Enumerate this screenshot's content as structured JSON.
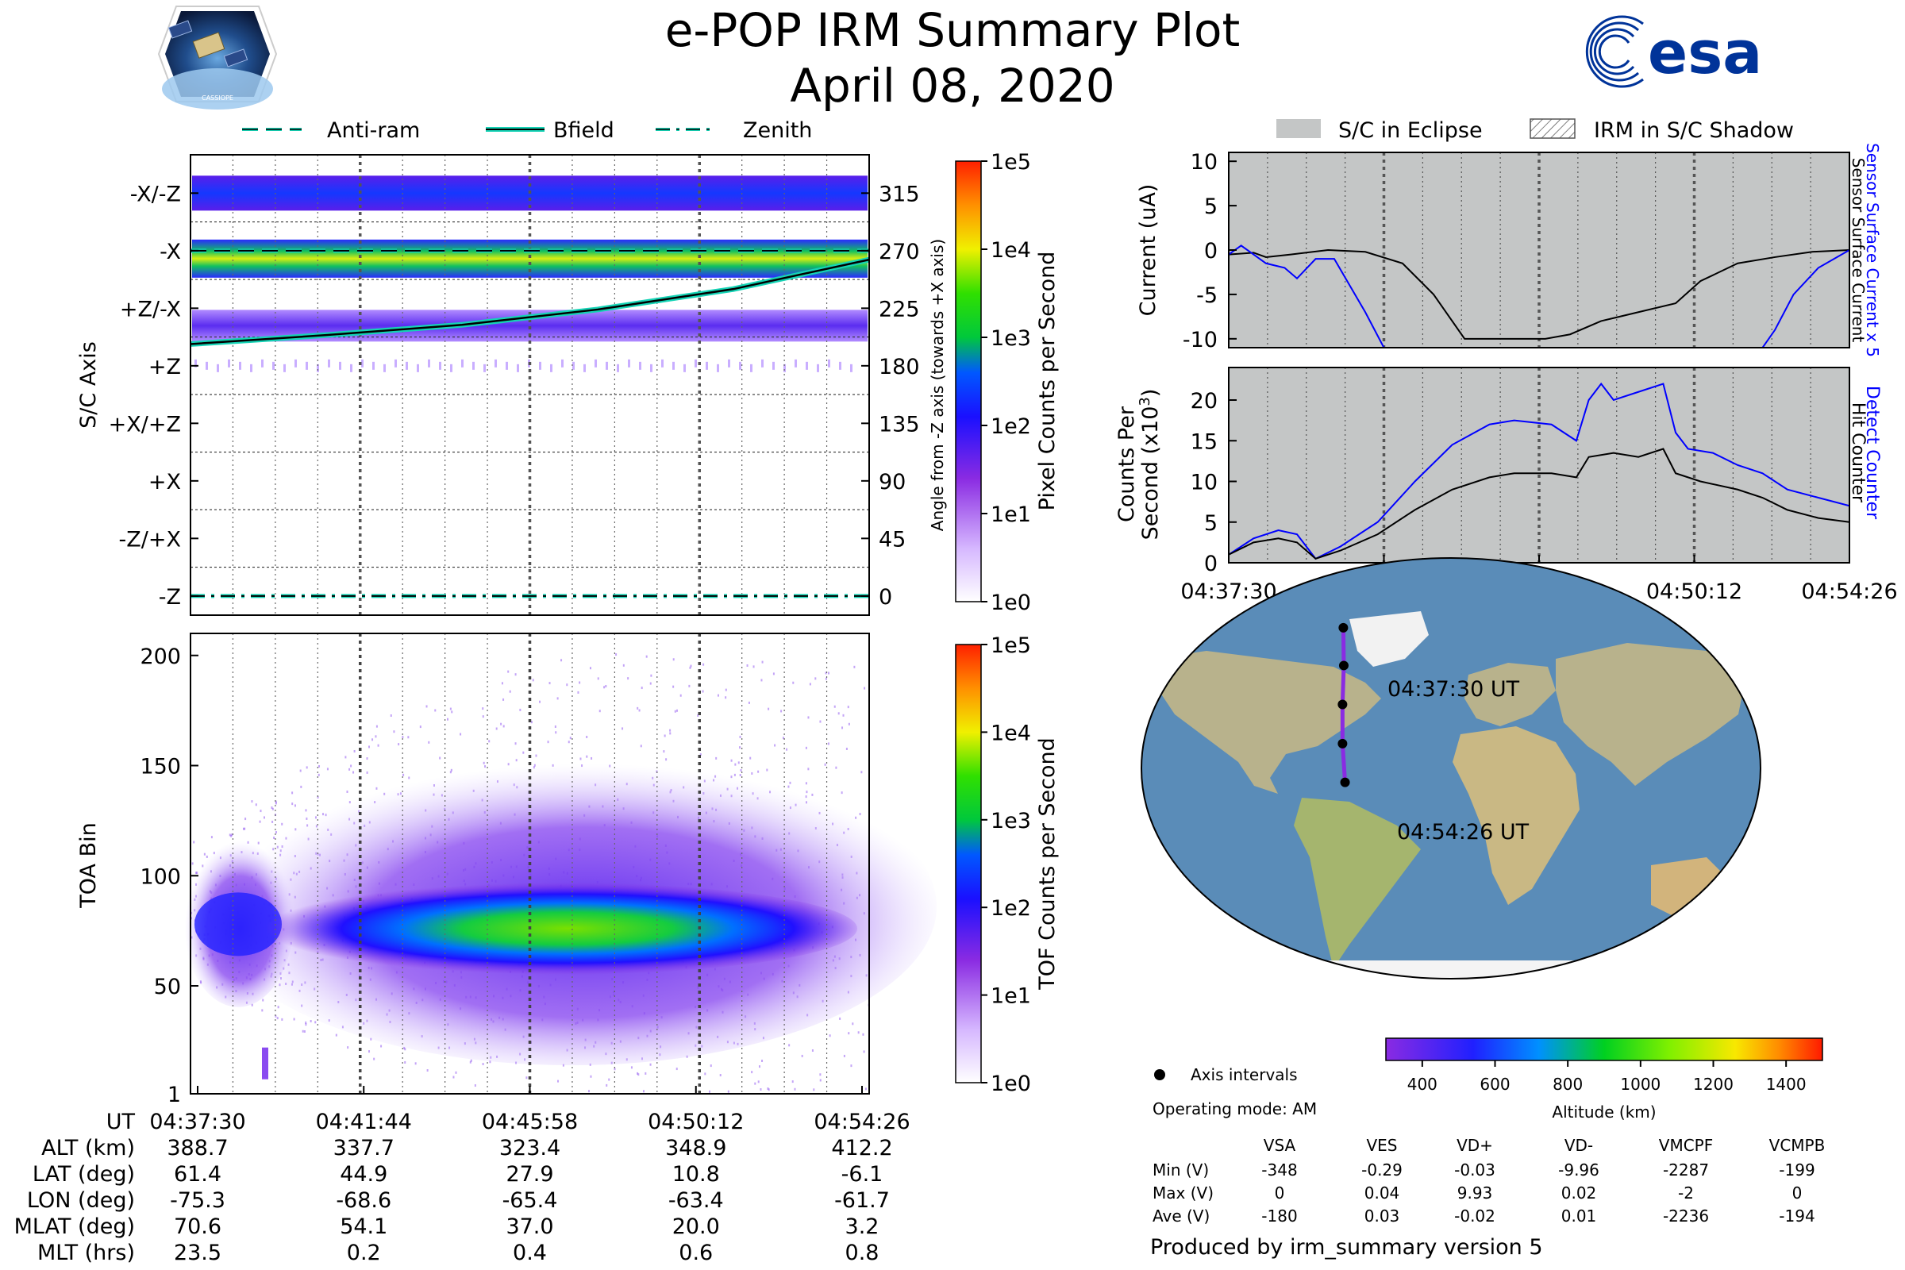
{
  "header": {
    "title": "e-POP IRM Summary Plot",
    "date": "April 08, 2020",
    "mission_logo_text": "CASSIOPE",
    "agency_logo_text": "esa",
    "agency_color": "#003399"
  },
  "legends": {
    "left": [
      {
        "label": "Anti-ram",
        "style": "dashed"
      },
      {
        "label": "Bfield",
        "style": "solid"
      },
      {
        "label": "Zenith",
        "style": "dashdot"
      }
    ],
    "right": [
      {
        "label": "S/C in Eclipse",
        "style": "gray-box"
      },
      {
        "label": "IRM in S/C Shadow",
        "style": "hatched-box"
      }
    ]
  },
  "colors": {
    "line_cyan": "#15d3b5",
    "eclipse_gray": "#c4c6c6",
    "blue_trace": "#0000ff",
    "black_trace": "#000000",
    "orbit_track": "#8a2be2",
    "ocean": "#5a8cb8",
    "land": "#b8b28c"
  },
  "chart_data": [
    {
      "id": "pixel-panel",
      "type": "heatmap",
      "ylabel": "S/C Axis",
      "ylabel_right": "Angle from -Z axis (towards +X axis)",
      "y_axis_labels": [
        "-X/-Z",
        "-X",
        "+Z/-X",
        "+Z",
        "+X/+Z",
        "+X",
        "-Z/+X",
        "-Z"
      ],
      "right_ticks": [
        315,
        270,
        225,
        180,
        135,
        90,
        45,
        0
      ],
      "ylim": [
        -15,
        345
      ],
      "bands": [
        {
          "axis": "-X/-Z",
          "angle": 315,
          "intensity": "medium"
        },
        {
          "axis": "-X",
          "angle": 270,
          "intensity": "high"
        },
        {
          "axis": "+Z/-X",
          "angle": 225,
          "intensity": "low"
        },
        {
          "axis": "+Z",
          "angle": 180,
          "intensity": "sparse"
        }
      ],
      "lines": [
        {
          "name": "Anti-ram",
          "style": "dashed",
          "x": [
            0,
            1
          ],
          "y": [
            270,
            270
          ]
        },
        {
          "name": "Bfield",
          "style": "solid",
          "x": [
            0,
            0.2,
            0.4,
            0.6,
            0.8,
            1.0
          ],
          "y": [
            197,
            204,
            212,
            224,
            240,
            263
          ]
        },
        {
          "name": "Zenith",
          "style": "dashdot",
          "x": [
            0,
            1
          ],
          "y": [
            0,
            0
          ]
        }
      ],
      "colorbar": {
        "label": "Pixel Counts per Second",
        "ticks": [
          "1e5",
          "1e4",
          "1e3",
          "1e2",
          "1e1",
          "1e0"
        ],
        "scale": "log"
      }
    },
    {
      "id": "tof-panel",
      "type": "heatmap",
      "ylabel": "TOA Bin",
      "y_ticks": [
        1,
        50,
        100,
        150,
        200
      ],
      "ylim": [
        1,
        210
      ],
      "peak_bin": 78,
      "colorbar": {
        "label": "TOF Counts per Second",
        "ticks": [
          "1e5",
          "1e4",
          "1e3",
          "1e2",
          "1e1",
          "1e0"
        ],
        "scale": "log"
      }
    },
    {
      "id": "current-panel",
      "type": "line",
      "ylabel": "Current (uA)",
      "right_label_blue": "Sensor Surface Current x 5",
      "right_label_black": "Sensor Surface Current",
      "y_ticks": [
        10,
        5,
        0,
        -5,
        -10
      ],
      "ylim": [
        -11,
        11
      ],
      "series": [
        {
          "name": "Sensor Surface Current",
          "color": "black",
          "x": [
            0,
            0.04,
            0.06,
            0.1,
            0.16,
            0.22,
            0.28,
            0.33,
            0.38,
            0.46,
            0.51,
            0.55,
            0.6,
            0.66,
            0.72,
            0.76,
            0.82,
            0.88,
            0.94,
            1.0
          ],
          "y": [
            -0.5,
            -0.3,
            -0.8,
            -0.5,
            0,
            -0.2,
            -1.5,
            -5,
            -10,
            -10,
            -10,
            -9.5,
            -8,
            -7,
            -6,
            -3.5,
            -1.5,
            -0.8,
            -0.2,
            0
          ]
        },
        {
          "name": "Sensor Surface Current x 5",
          "color": "blue",
          "x": [
            0,
            0.02,
            0.04,
            0.06,
            0.09,
            0.11,
            0.14,
            0.17,
            0.22,
            0.25,
            0.86,
            0.88,
            0.91,
            0.95,
            1.0
          ],
          "y": [
            -0.5,
            0.5,
            -0.5,
            -1.5,
            -2,
            -3.2,
            -1,
            -1,
            -7,
            -11,
            -11,
            -9,
            -5,
            -2,
            0
          ]
        }
      ]
    },
    {
      "id": "counts-panel",
      "type": "line",
      "ylabel": "Counts Per Second (x10^3)",
      "right_label_blue": "Detect Counter",
      "right_label_black": "Hit Counter",
      "y_ticks": [
        0,
        5,
        10,
        15,
        20
      ],
      "ylim": [
        0,
        24
      ],
      "series": [
        {
          "name": "Detect Counter",
          "color": "blue",
          "x": [
            0,
            0.04,
            0.08,
            0.11,
            0.14,
            0.18,
            0.24,
            0.3,
            0.36,
            0.42,
            0.46,
            0.52,
            0.56,
            0.58,
            0.6,
            0.62,
            0.66,
            0.7,
            0.72,
            0.74,
            0.78,
            0.82,
            0.86,
            0.9,
            0.95,
            1.0
          ],
          "y": [
            1,
            3,
            4,
            3.5,
            0.5,
            2,
            5,
            10,
            14.5,
            17,
            17.5,
            17,
            15,
            20,
            22,
            20,
            21,
            22,
            16,
            14,
            13.5,
            12,
            11,
            9,
            8,
            7
          ]
        },
        {
          "name": "Hit Counter",
          "color": "black",
          "x": [
            0,
            0.04,
            0.08,
            0.11,
            0.14,
            0.18,
            0.24,
            0.3,
            0.36,
            0.42,
            0.46,
            0.52,
            0.56,
            0.58,
            0.62,
            0.66,
            0.7,
            0.72,
            0.76,
            0.82,
            0.86,
            0.9,
            0.95,
            1.0
          ],
          "y": [
            1,
            2.5,
            3,
            2.5,
            0.5,
            1.5,
            3.5,
            6.5,
            9,
            10.5,
            11,
            11,
            10.5,
            13,
            13.5,
            13,
            14,
            11,
            10,
            9,
            8,
            6.5,
            5.5,
            5
          ]
        }
      ]
    }
  ],
  "time_axis": {
    "labels": [
      "04:37:30",
      "04:41:44",
      "04:45:58",
      "04:50:12",
      "04:54:26"
    ]
  },
  "orbit_table": {
    "row_labels": [
      "UT",
      "ALT (km)",
      "LAT (deg)",
      "LON (deg)",
      "MLAT (deg)",
      "MLT (hrs)"
    ],
    "rows": [
      [
        "388.7",
        "337.7",
        "323.4",
        "348.9",
        "412.2"
      ],
      [
        "61.4",
        "44.9",
        "27.9",
        "10.8",
        "-6.1"
      ],
      [
        "-75.3",
        "-68.6",
        "-65.4",
        "-63.4",
        "-61.7"
      ],
      [
        "70.6",
        "54.1",
        "37.0",
        "20.0",
        "3.2"
      ],
      [
        "23.5",
        "0.2",
        "0.4",
        "0.6",
        "0.8"
      ]
    ]
  },
  "map": {
    "start_label": "04:37:30 UT",
    "end_label": "04:54:26 UT",
    "axis_intervals_label": "Axis intervals",
    "operating_mode": "Operating mode: AM",
    "track": [
      {
        "lon": -75.3,
        "lat": 61.4
      },
      {
        "lon": -68.6,
        "lat": 44.9
      },
      {
        "lon": -65.4,
        "lat": 27.9
      },
      {
        "lon": -63.4,
        "lat": 10.8
      },
      {
        "lon": -61.7,
        "lat": -6.1
      }
    ],
    "altitude_colorbar": {
      "label": "Altitude (km)",
      "ticks": [
        "400",
        "600",
        "800",
        "1000",
        "1200",
        "1400"
      ],
      "range": [
        300,
        1500
      ]
    }
  },
  "voltage_table": {
    "columns": [
      "VSA",
      "VES",
      "VD+",
      "VD-",
      "VMCPF",
      "VCMPB"
    ],
    "rows": [
      {
        "label": "Min (V)",
        "values": [
          "-348",
          "-0.29",
          "-0.03",
          "-9.96",
          "-2287",
          "-199"
        ]
      },
      {
        "label": "Max (V)",
        "values": [
          "0",
          "0.04",
          "9.93",
          "0.02",
          "-2",
          "0"
        ]
      },
      {
        "label": "Ave (V)",
        "values": [
          "-180",
          "0.03",
          "-0.02",
          "0.01",
          "-2236",
          "-194"
        ]
      }
    ]
  },
  "footer": "Produced by irm_summary version 5"
}
